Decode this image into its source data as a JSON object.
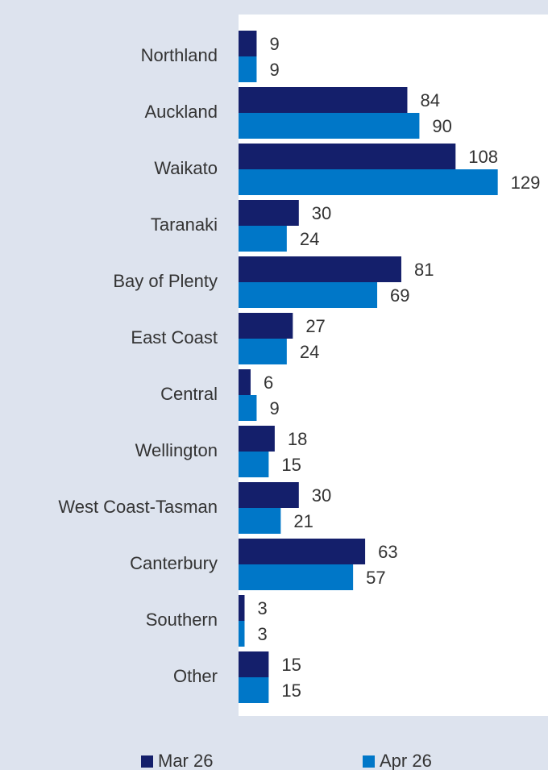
{
  "chart_data": {
    "type": "hbar",
    "categories": [
      "Northland",
      "Auckland",
      "Waikato",
      "Taranaki",
      "Bay of Plenty",
      "East Coast",
      "Central",
      "Wellington",
      "West Coast-Tasman",
      "Canterbury",
      "Southern",
      "Other"
    ],
    "series": [
      {
        "name": "Mar 26",
        "color": "#141f6b",
        "values": [
          9,
          84,
          108,
          30,
          81,
          27,
          6,
          18,
          30,
          63,
          3,
          15
        ]
      },
      {
        "name": "Apr 26",
        "color": "#0077c8",
        "values": [
          9,
          90,
          129,
          24,
          69,
          24,
          9,
          15,
          21,
          57,
          3,
          15
        ]
      }
    ],
    "xlim": [
      0,
      154
    ]
  }
}
